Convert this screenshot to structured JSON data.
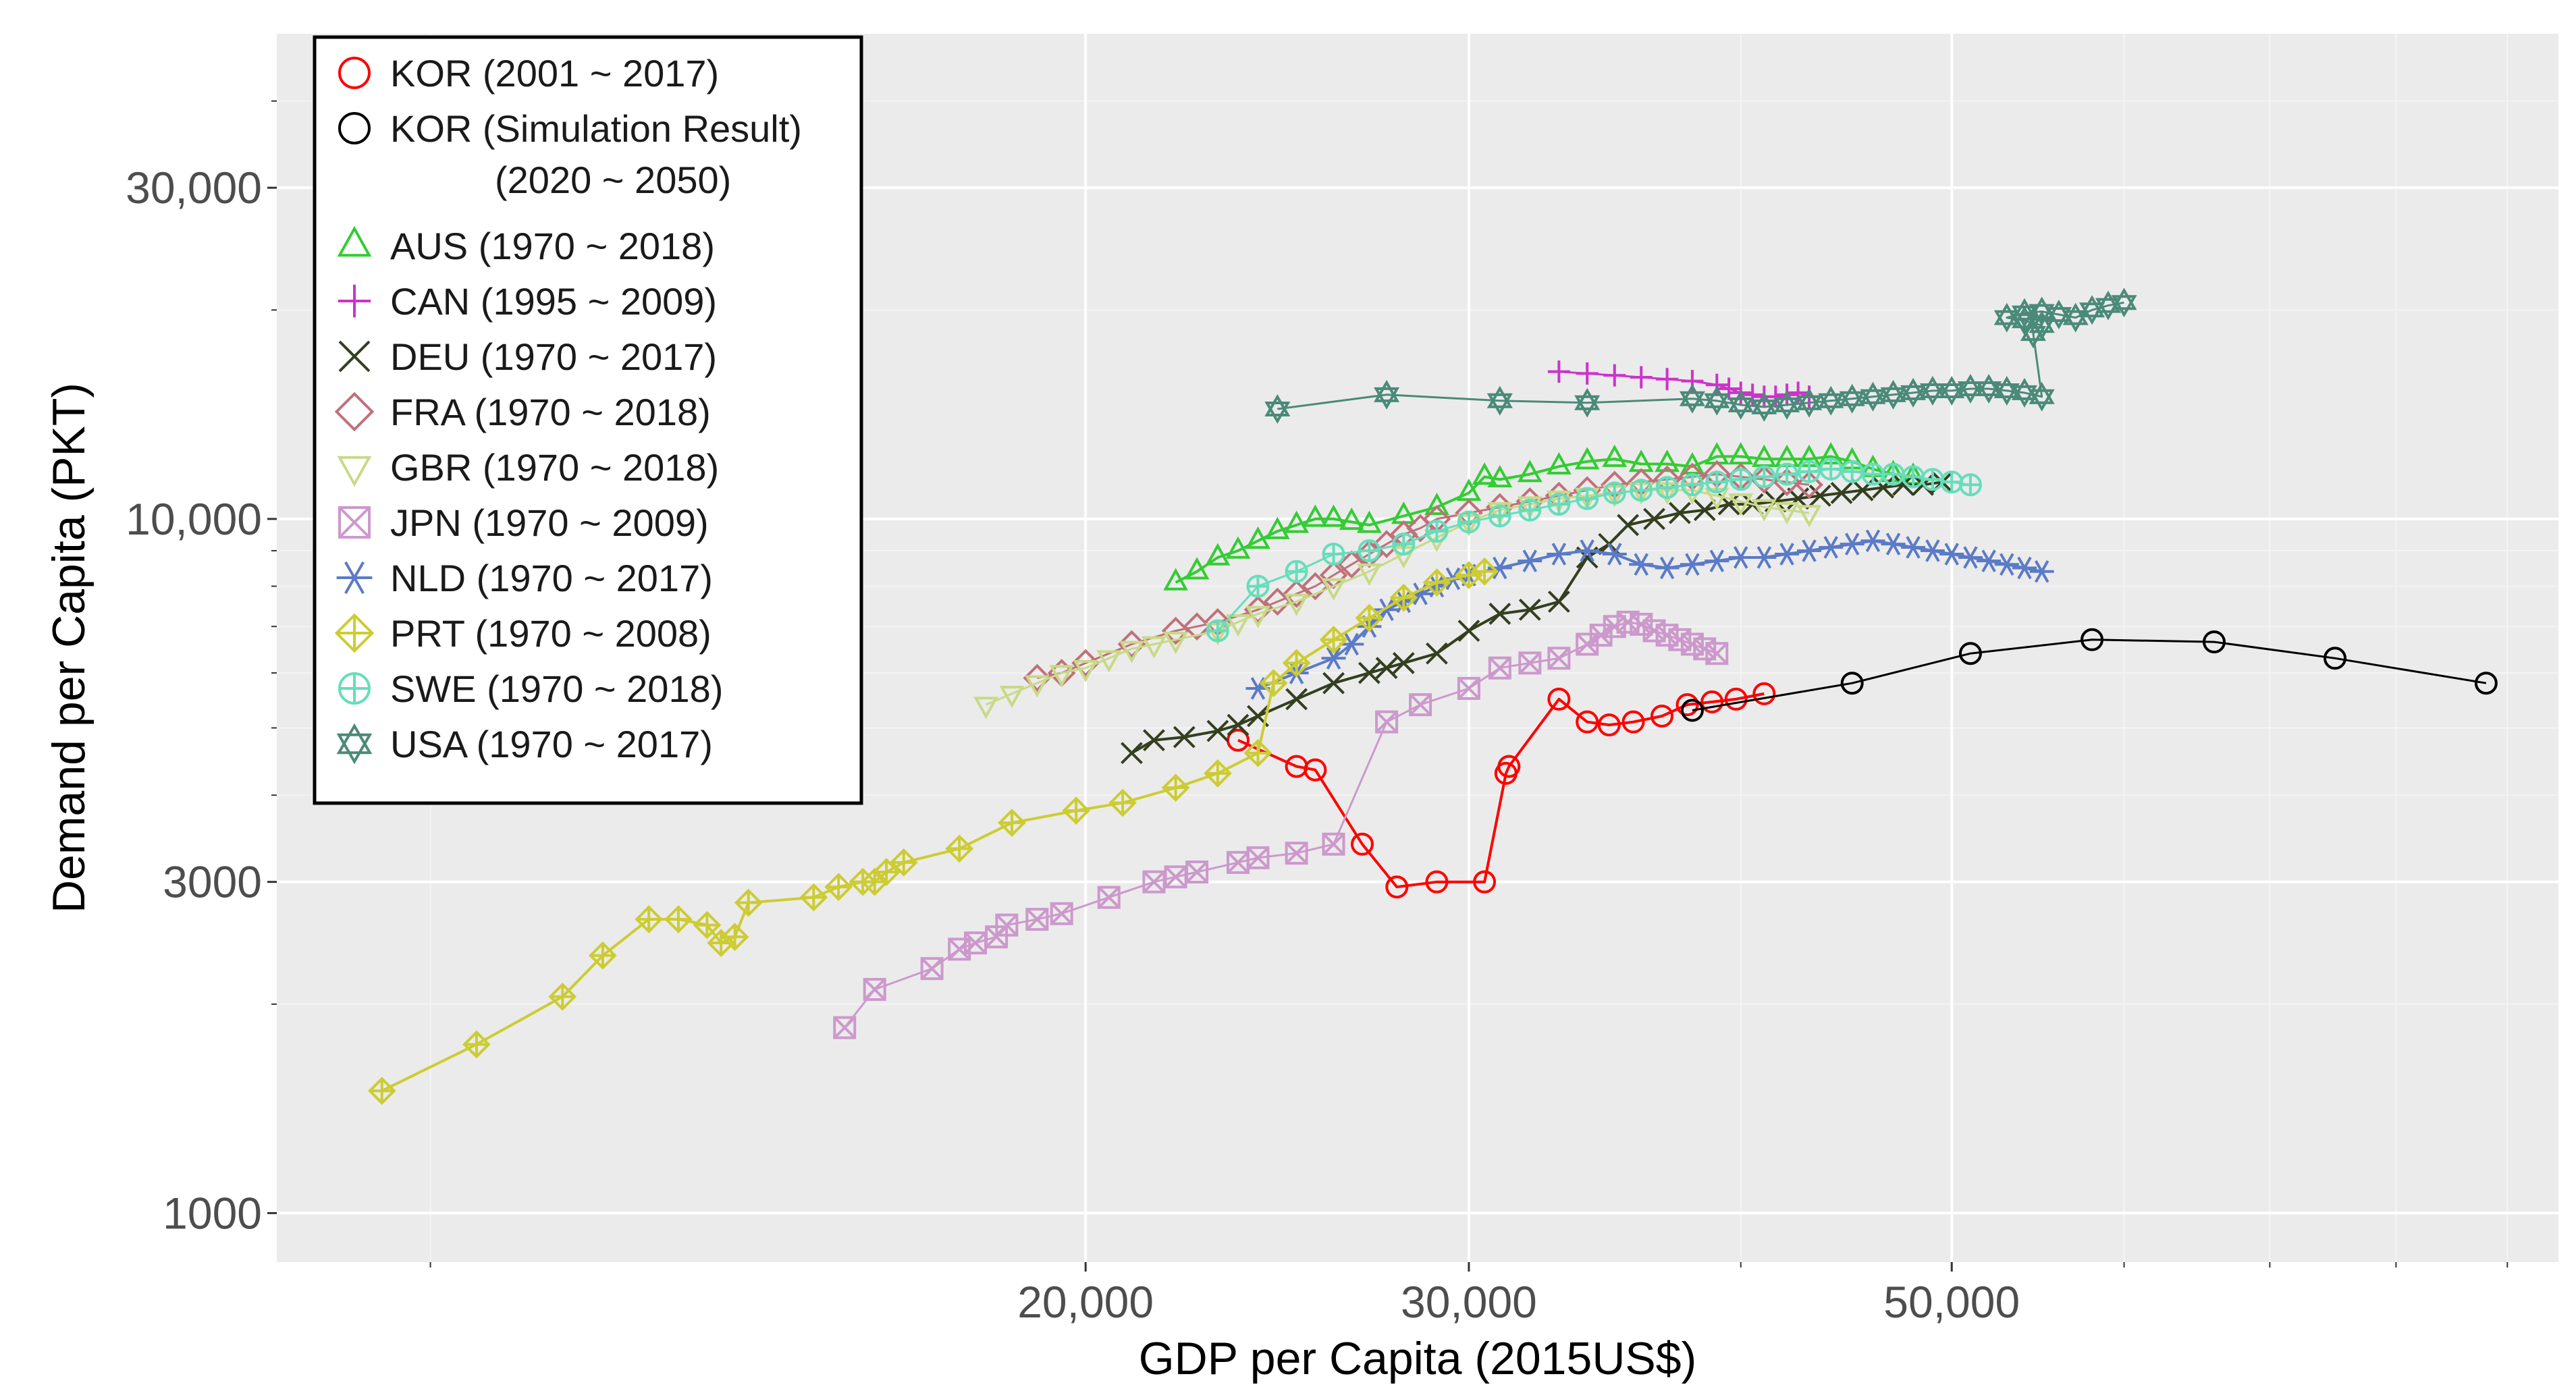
{
  "chart_data": {
    "type": "scatter",
    "xscale": "log",
    "yscale": "log",
    "xlabel": "GDP per Capita (2015US$)",
    "ylabel": "Demand per Capita (PKT)",
    "xlim": [
      8500,
      95000
    ],
    "ylim": [
      850,
      50000
    ],
    "xticks": [
      {
        "value": 20000,
        "label": "20,000"
      },
      {
        "value": 30000,
        "label": "30,000"
      },
      {
        "value": 50000,
        "label": "50,000"
      }
    ],
    "yticks": [
      {
        "value": 1000,
        "label": "1000"
      },
      {
        "value": 3000,
        "label": "3000"
      },
      {
        "value": 10000,
        "label": "10,000"
      },
      {
        "value": 30000,
        "label": "30,000"
      }
    ],
    "legend_position": "top-left",
    "series": [
      {
        "name": "KOR (2001 ~ 2017)",
        "marker": "circle",
        "color": "#ff0000",
        "line_width": 4,
        "x": [
          23500,
          25000,
          25500,
          26800,
          27800,
          29000,
          30500,
          31200,
          31300,
          33000,
          34000,
          34800,
          35700,
          36800,
          37800,
          38800,
          39800,
          41000
        ],
        "y": [
          4800,
          4400,
          4350,
          3400,
          2950,
          3000,
          3000,
          4300,
          4400,
          5500,
          5100,
          5050,
          5100,
          5200,
          5400,
          5450,
          5500,
          5600
        ]
      },
      {
        "name": "KOR (Simulation Result) (2020 ~ 2050)",
        "legend_lines": [
          "KOR (Simulation Result)",
          "(2020 ~ 2050)"
        ],
        "marker": "circle",
        "color": "#000000",
        "line_width": 3,
        "x": [
          38000,
          45000,
          51000,
          58000,
          66000,
          75000,
          88000
        ],
        "y": [
          5300,
          5800,
          6400,
          6700,
          6650,
          6300,
          5800
        ]
      },
      {
        "name": "AUS (1970 ~ 2018)",
        "marker": "triangle",
        "color": "#33cc33",
        "line_width": 4,
        "x": [
          22000,
          22500,
          23000,
          23500,
          24000,
          24500,
          25000,
          25500,
          26000,
          26500,
          27000,
          28000,
          29000,
          30000,
          30500,
          31000,
          32000,
          33000,
          34000,
          35000,
          36000,
          37000,
          38000,
          39000,
          40000,
          41000,
          42000,
          43000,
          44000,
          45000,
          46000,
          47000,
          48000
        ],
        "y": [
          8100,
          8400,
          8800,
          9000,
          9300,
          9600,
          9800,
          10000,
          10000,
          9900,
          9800,
          10100,
          10400,
          10900,
          11500,
          11400,
          11600,
          11900,
          12100,
          12200,
          12000,
          12000,
          11900,
          12300,
          12300,
          12200,
          12200,
          12200,
          12300,
          12100,
          11800,
          11600,
          11500
        ]
      },
      {
        "name": "CAN (1995 ~ 2009)",
        "marker": "plus",
        "color": "#cc33cc",
        "line_width": 3,
        "x": [
          33000,
          34000,
          35000,
          36000,
          37000,
          38000,
          39000,
          39500,
          40000,
          40500,
          41000,
          41500,
          42000,
          42500,
          43000
        ],
        "y": [
          16300,
          16200,
          16100,
          16000,
          15900,
          15800,
          15600,
          15400,
          15200,
          15100,
          15000,
          15000,
          15100,
          15200,
          15000
        ]
      },
      {
        "name": "DEU (1970 ~ 2017)",
        "marker": "x",
        "color": "#333f1f",
        "line_width": 4,
        "x": [
          21000,
          21500,
          22200,
          23000,
          23500,
          24000,
          25000,
          26000,
          27000,
          27500,
          28000,
          29000,
          30000,
          31000,
          32000,
          33000,
          34000,
          34800,
          35500,
          36500,
          37500,
          38500,
          39500,
          40500,
          41500,
          42500,
          43500,
          44500,
          45500,
          46500,
          47500,
          48500,
          49500
        ],
        "y": [
          4600,
          4800,
          4850,
          4950,
          5050,
          5200,
          5500,
          5800,
          6000,
          6100,
          6200,
          6400,
          6900,
          7300,
          7400,
          7600,
          8800,
          9200,
          9800,
          10000,
          10200,
          10300,
          10500,
          10500,
          10600,
          10700,
          10800,
          10900,
          11000,
          11100,
          11200,
          11200,
          11300
        ]
      },
      {
        "name": "FRA (1970 ~ 2018)",
        "marker": "diamond",
        "color": "#c0707a",
        "line_width": 3,
        "x": [
          19000,
          19500,
          20000,
          21000,
          22000,
          22500,
          23000,
          24000,
          24500,
          25000,
          25500,
          26000,
          26500,
          27000,
          27500,
          28000,
          28500,
          29000,
          30000,
          31000,
          32000,
          33000,
          34000,
          35000,
          36000,
          37000,
          38000,
          39000,
          40000,
          41000,
          42000,
          43000
        ],
        "y": [
          5900,
          6000,
          6200,
          6600,
          6900,
          7000,
          7100,
          7400,
          7600,
          7800,
          8000,
          8300,
          8600,
          8900,
          9200,
          9500,
          9700,
          10000,
          10200,
          10400,
          10600,
          10800,
          11000,
          11200,
          11300,
          11400,
          11500,
          11600,
          11500,
          11400,
          11300,
          11200
        ]
      },
      {
        "name": "GBR (1970 ~ 2018)",
        "marker": "triangle-down",
        "color": "#c8d988",
        "line_width": 3,
        "x": [
          18000,
          18500,
          19000,
          19500,
          20000,
          20500,
          21000,
          21500,
          22000,
          23000,
          23500,
          24000,
          25000,
          26000,
          27000,
          28000,
          29000,
          30000,
          31000,
          32000,
          33000,
          34000,
          35000,
          36000,
          37000,
          38000,
          39000,
          40000,
          41000,
          42000,
          43000
        ],
        "y": [
          5400,
          5600,
          5800,
          6000,
          6100,
          6300,
          6500,
          6600,
          6700,
          6900,
          7100,
          7300,
          7600,
          8000,
          8400,
          8900,
          9400,
          9900,
          10300,
          10500,
          10700,
          10800,
          10900,
          11000,
          11000,
          11000,
          10800,
          10600,
          10400,
          10300,
          10200
        ]
      },
      {
        "name": "JPN (1970 ~ 2009)",
        "marker": "square-x",
        "color": "#cc99cc",
        "line_width": 3,
        "x": [
          15500,
          16000,
          17000,
          17500,
          17800,
          18200,
          18400,
          19000,
          19500,
          20500,
          21500,
          22000,
          22500,
          23500,
          24000,
          25000,
          26000,
          27500,
          28500,
          30000,
          31000,
          32000,
          33000,
          34000,
          34500,
          35000,
          35500,
          36000,
          36500,
          37000,
          37500,
          38000,
          38500,
          39000
        ],
        "y": [
          1850,
          2100,
          2250,
          2400,
          2450,
          2500,
          2600,
          2650,
          2700,
          2850,
          3000,
          3050,
          3100,
          3200,
          3250,
          3300,
          3400,
          5100,
          5400,
          5700,
          6100,
          6200,
          6300,
          6600,
          6800,
          7000,
          7100,
          7050,
          6900,
          6800,
          6700,
          6600,
          6500,
          6400
        ]
      },
      {
        "name": "NLD (1970 ~ 2017)",
        "marker": "asterisk",
        "color": "#5b7ac7",
        "line_width": 4,
        "x": [
          24000,
          25000,
          26000,
          26500,
          27000,
          27500,
          28000,
          28500,
          29000,
          29500,
          30000,
          31000,
          32000,
          33000,
          34000,
          35000,
          36000,
          37000,
          38000,
          39000,
          40000,
          41000,
          42000,
          43000,
          44000,
          45000,
          46000,
          47000,
          48000,
          49000,
          50000,
          51000,
          52000,
          53000,
          54000,
          55000
        ],
        "y": [
          5700,
          6000,
          6300,
          6600,
          7000,
          7400,
          7600,
          7800,
          8000,
          8200,
          8300,
          8500,
          8700,
          8900,
          9000,
          8900,
          8600,
          8500,
          8600,
          8700,
          8800,
          8800,
          8900,
          9000,
          9100,
          9200,
          9300,
          9200,
          9100,
          9000,
          8900,
          8800,
          8700,
          8600,
          8500,
          8400
        ]
      },
      {
        "name": "PRT (1970 ~ 2008)",
        "marker": "diamond-plus",
        "color": "#cccc33",
        "line_width": 4,
        "x": [
          9500,
          10500,
          11500,
          12000,
          12600,
          13000,
          13400,
          13600,
          13800,
          14000,
          15000,
          15400,
          15800,
          16000,
          16200,
          16500,
          17500,
          18500,
          19800,
          20800,
          22000,
          23000,
          24000,
          24400,
          25000,
          26000,
          27000,
          28000,
          29000,
          30000,
          30500
        ],
        "y": [
          1500,
          1750,
          2050,
          2350,
          2650,
          2650,
          2600,
          2450,
          2500,
          2800,
          2850,
          2950,
          3000,
          3000,
          3100,
          3200,
          3350,
          3650,
          3800,
          3900,
          4100,
          4300,
          4600,
          5800,
          6200,
          6700,
          7200,
          7700,
          8100,
          8300,
          8400
        ]
      },
      {
        "name": "SWE (1970 ~ 2018)",
        "marker": "circle-plus",
        "color": "#66ddbb",
        "line_width": 3,
        "x": [
          23000,
          24000,
          25000,
          26000,
          27000,
          28000,
          29000,
          30000,
          31000,
          32000,
          33000,
          34000,
          35000,
          36000,
          37000,
          38000,
          39000,
          40000,
          41000,
          42000,
          43000,
          44000,
          45000,
          46000,
          47000,
          48000,
          49000,
          50000,
          51000
        ],
        "y": [
          6900,
          8000,
          8400,
          8900,
          9000,
          9200,
          9600,
          9900,
          10100,
          10300,
          10500,
          10700,
          10900,
          11000,
          11100,
          11200,
          11300,
          11400,
          11500,
          11600,
          11700,
          11800,
          11700,
          11600,
          11600,
          11500,
          11400,
          11300,
          11200
        ]
      },
      {
        "name": "USA (1970 ~ 2017)",
        "marker": "star",
        "color": "#4b8a78",
        "line_width": 3,
        "x": [
          24500,
          27500,
          31000,
          34000,
          38000,
          39000,
          40000,
          41000,
          42000,
          43000,
          44000,
          45000,
          46000,
          47000,
          48000,
          49000,
          50000,
          51000,
          52000,
          53000,
          54000,
          55000,
          54500,
          55000,
          54000,
          53000,
          54000,
          55000,
          56000,
          57000,
          58000,
          59000,
          60000
        ],
        "y": [
          14400,
          15100,
          14800,
          14700,
          14900,
          14800,
          14600,
          14500,
          14600,
          14700,
          14800,
          14900,
          15000,
          15100,
          15200,
          15300,
          15300,
          15400,
          15400,
          15300,
          15200,
          15000,
          18500,
          19000,
          19300,
          19500,
          19800,
          19900,
          19700,
          19500,
          20000,
          20300,
          20500
        ]
      }
    ]
  }
}
